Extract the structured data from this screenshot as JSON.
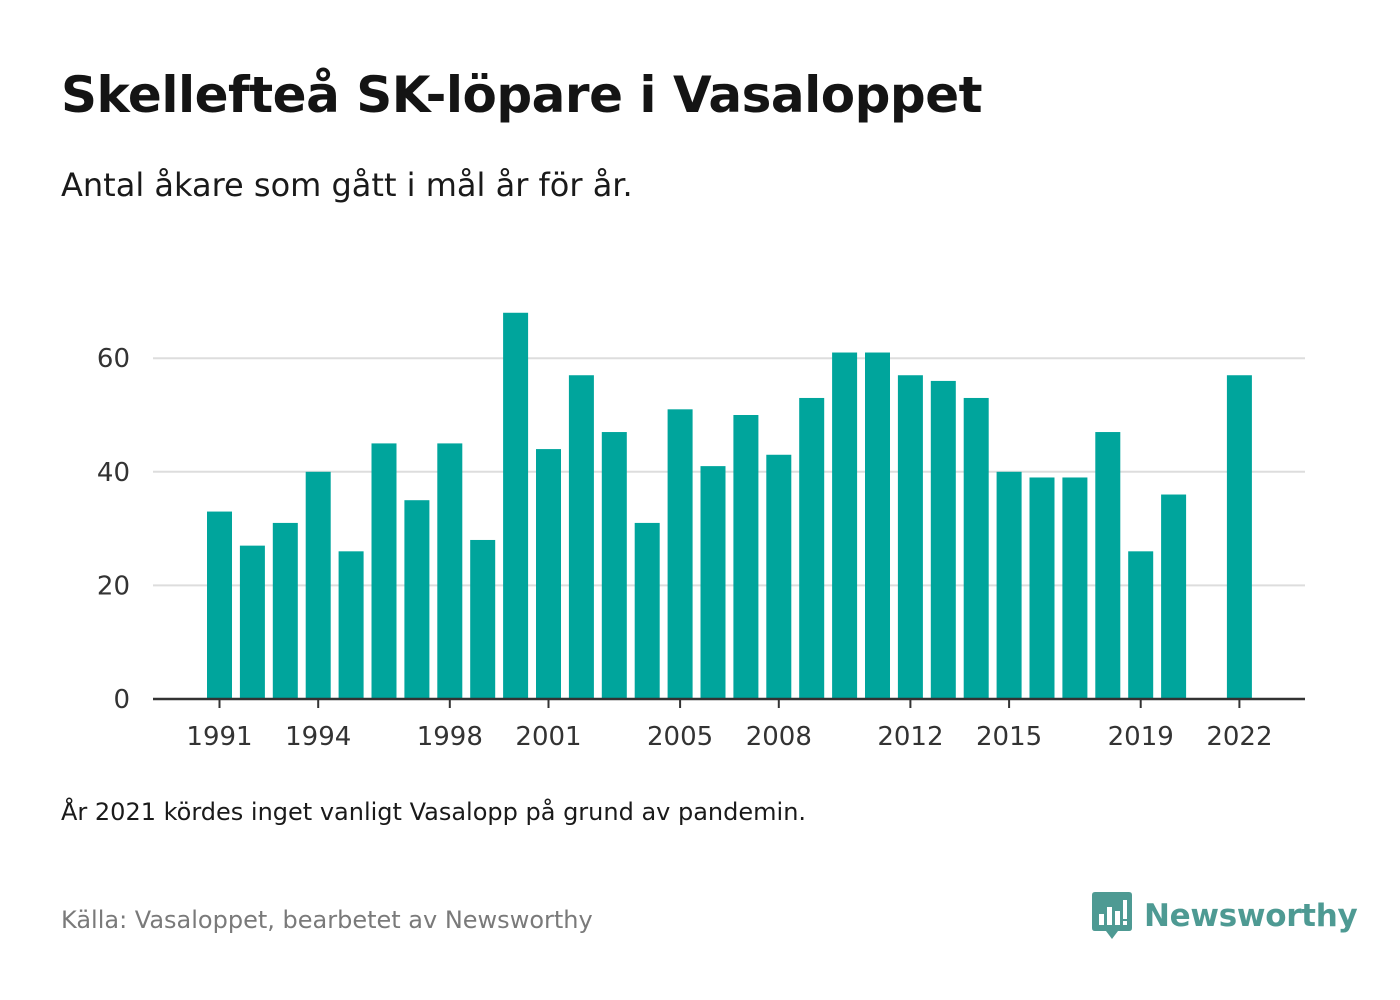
{
  "title": "Skellefteå SK-löpare i Vasaloppet",
  "subtitle": "Antal åkare som gått i mål år för år.",
  "note": "År 2021 kördes inget vanligt Vasalopp på grund av pandemin.",
  "source": "Källa: Vasaloppet, bearbetet av Newsworthy",
  "brand": {
    "name": "Newsworthy",
    "icon": "newsworthy-logo-icon"
  },
  "colors": {
    "bar": "#00a59c",
    "grid": "#dddddd",
    "axis": "#333333",
    "brand": "#4e9a93"
  },
  "chart_data": {
    "type": "bar",
    "categories": [
      1991,
      1992,
      1993,
      1994,
      1995,
      1996,
      1997,
      1998,
      1999,
      2000,
      2001,
      2002,
      2003,
      2004,
      2005,
      2006,
      2007,
      2008,
      2009,
      2010,
      2011,
      2012,
      2013,
      2014,
      2015,
      2016,
      2017,
      2018,
      2019,
      2020,
      2021,
      2022
    ],
    "values": [
      33,
      27,
      31,
      40,
      26,
      45,
      35,
      45,
      28,
      68,
      44,
      57,
      47,
      31,
      51,
      41,
      50,
      43,
      53,
      61,
      61,
      57,
      56,
      53,
      40,
      39,
      39,
      47,
      26,
      36,
      null,
      57
    ],
    "xticks": [
      "1991",
      "1994",
      "1998",
      "2001",
      "2005",
      "2008",
      "2012",
      "2015",
      "2019",
      "2022"
    ],
    "yticks": [
      "0",
      "20",
      "40",
      "60"
    ],
    "ylim": [
      0,
      74
    ],
    "grid": true,
    "legend": "none"
  }
}
